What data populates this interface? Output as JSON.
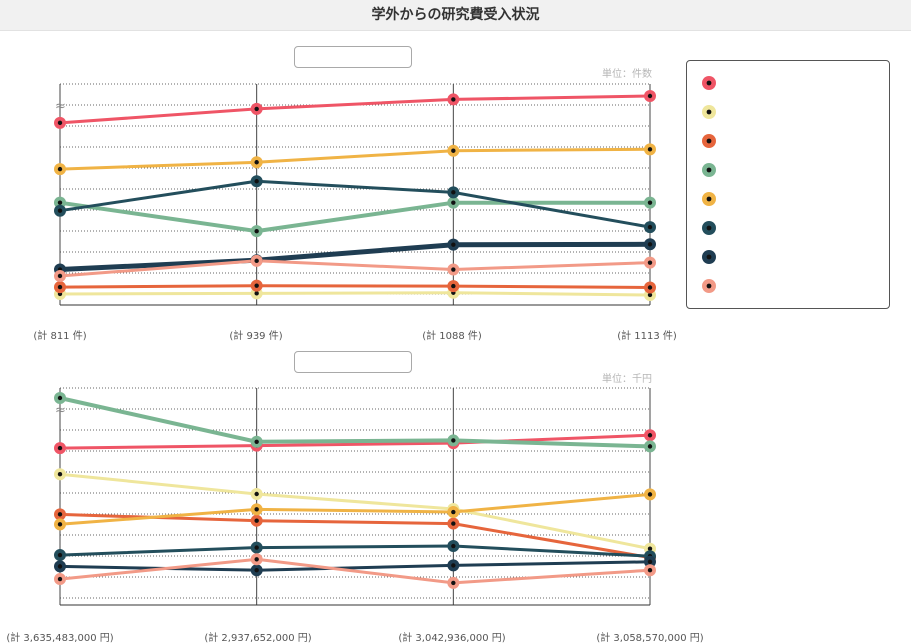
{
  "title": "学外からの研究費受入状況",
  "colors": {
    "series1": "#ef5566",
    "series2": "#efe69c",
    "series3": "#e6653c",
    "series4": "#7ab592",
    "series5": "#f0b345",
    "series6": "#234e5c",
    "series7": "#1f3d52",
    "series8": "#f29a87"
  },
  "legend": {
    "items": [
      {
        "color_key": "series1",
        "icon": "marker-circle-icon"
      },
      {
        "color_key": "series2",
        "icon": "marker-circle-icon"
      },
      {
        "color_key": "series3",
        "icon": "marker-circle-icon"
      },
      {
        "color_key": "series4",
        "icon": "marker-circle-icon"
      },
      {
        "color_key": "series5",
        "icon": "marker-circle-icon"
      },
      {
        "color_key": "series6",
        "icon": "marker-circle-icon"
      },
      {
        "color_key": "series7",
        "icon": "marker-circle-icon"
      },
      {
        "color_key": "series8",
        "icon": "marker-circle-icon"
      }
    ]
  },
  "chart_data": [
    {
      "type": "line",
      "unit_label": "単位：件数",
      "break_symbol": "≈",
      "totals": [
        "(計 811 件)",
        "(計 939 件)",
        "(計 1088 件)",
        "(計 1113 件)"
      ],
      "ylim": [
        0,
        100
      ],
      "series": [
        {
          "color_key": "series1",
          "values": [
            86.7,
            93.6,
            98.3,
            100.0
          ],
          "stroke": 3
        },
        {
          "color_key": "series2",
          "values": [
            2.0,
            2.3,
            2.6,
            1.5
          ],
          "stroke": 3
        },
        {
          "color_key": "series3",
          "values": [
            5.4,
            6.1,
            5.9,
            5.2
          ],
          "stroke": 3
        },
        {
          "color_key": "series4",
          "values": [
            47.2,
            33.1,
            47.2,
            47.2
          ],
          "stroke": 4
        },
        {
          "color_key": "series5",
          "values": [
            63.8,
            67.2,
            72.9,
            73.6
          ],
          "stroke": 3
        },
        {
          "color_key": "series6",
          "values": [
            43.2,
            57.8,
            52.3,
            35.1
          ],
          "stroke": 3
        },
        {
          "color_key": "series7",
          "values": [
            14.1,
            18.7,
            26.4,
            26.6
          ],
          "stroke": 5
        },
        {
          "color_key": "series8",
          "values": [
            10.9,
            18.4,
            14.1,
            17.5
          ],
          "stroke": 3
        }
      ]
    },
    {
      "type": "line",
      "unit_label": "単位：千円",
      "break_symbol": "≈",
      "totals": [
        "(計 3,635,483,000 円)",
        "(計 2,937,652,000 円)",
        "(計 3,042,936,000 円)",
        "(計 3,058,570,000 円)"
      ],
      "ylim": [
        0,
        100
      ],
      "series": [
        {
          "color_key": "series1",
          "values": [
            73.9,
            75.2,
            76.5,
            80.6
          ],
          "stroke": 3
        },
        {
          "color_key": "series2",
          "values": [
            60.3,
            50.0,
            42.2,
            21.5
          ],
          "stroke": 3
        },
        {
          "color_key": "series3",
          "values": [
            39.4,
            36.1,
            34.6,
            16.9
          ],
          "stroke": 3
        },
        {
          "color_key": "series4",
          "values": [
            100.0,
            77.2,
            77.9,
            74.8
          ],
          "stroke": 4
        },
        {
          "color_key": "series5",
          "values": [
            34.2,
            42.0,
            40.6,
            49.8
          ],
          "stroke": 3
        },
        {
          "color_key": "series6",
          "values": [
            18.2,
            22.1,
            22.9,
            17.6
          ],
          "stroke": 3
        },
        {
          "color_key": "series7",
          "values": [
            12.3,
            10.3,
            12.8,
            14.7
          ],
          "stroke": 3
        },
        {
          "color_key": "series8",
          "values": [
            5.7,
            16.0,
            3.7,
            10.3
          ],
          "stroke": 3
        }
      ]
    }
  ]
}
